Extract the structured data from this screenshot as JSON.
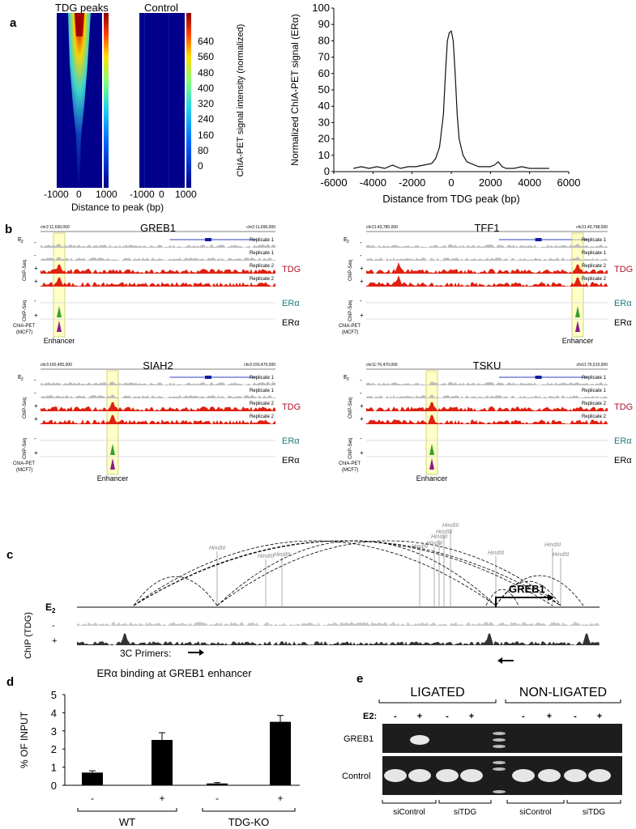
{
  "panel_a": {
    "letter": "a",
    "heatmap_left_title": "TDG peaks",
    "heatmap_right_title": "Control",
    "heatmap_xticks": [
      "-1000",
      "0",
      "1000"
    ],
    "heatmap_xlabel": "Distance to peak (bp)",
    "colorbar_ticks": [
      "640",
      "560",
      "480",
      "400",
      "320",
      "240",
      "160",
      "80",
      "0"
    ],
    "colorbar_label": "ChIA-PET signal intensity (normalized)",
    "colors": {
      "low": "#00008b",
      "mid": "#20c0e0",
      "high": "#8b0000"
    }
  },
  "chart_data": [
    {
      "type": "line",
      "ylabel": "Normalized ChIA-PET signal (ERα)",
      "xlabel": "Distance from TDG peak (bp)",
      "xlim": [
        -6000,
        6000
      ],
      "ylim": [
        0,
        100
      ],
      "xticks": [
        "-6000",
        "-4000",
        "-2000",
        "0",
        "2000",
        "4000",
        "6000"
      ],
      "yticks": [
        "0",
        "10",
        "20",
        "30",
        "40",
        "50",
        "60",
        "70",
        "80",
        "90",
        "100"
      ],
      "series": [
        {
          "x": [
            -5000,
            -4600,
            -4200,
            -3800,
            -3400,
            -3000,
            -2600,
            -2200,
            -1800,
            -1400,
            -1000,
            -800,
            -600,
            -400,
            -300,
            -200,
            -100,
            0,
            100,
            200,
            300,
            400,
            600,
            800,
            1000,
            1400,
            1800,
            2000,
            2200,
            2400,
            2600,
            2800,
            3200,
            3600,
            4000,
            4400,
            4800,
            5000
          ],
          "y": [
            2,
            3,
            2,
            3,
            2,
            4,
            2,
            3,
            3,
            4,
            5,
            8,
            15,
            35,
            60,
            80,
            85,
            86,
            80,
            60,
            35,
            20,
            10,
            6,
            5,
            3,
            3,
            3,
            4,
            6,
            3,
            2,
            2,
            3,
            2,
            2,
            2,
            2
          ]
        }
      ]
    },
    {
      "type": "bar",
      "title": "ERα binding at GREB1 enhancer",
      "ylabel": "% OF INPUT",
      "ylim": [
        0,
        5
      ],
      "yticks": [
        "0",
        "1",
        "2",
        "3",
        "4",
        "5"
      ],
      "categories": [
        "WT -",
        "WT +",
        "TDG-KO -",
        "TDG-KO +"
      ],
      "values": [
        0.7,
        2.5,
        0.1,
        3.5
      ],
      "errors": [
        0.1,
        0.4,
        0.05,
        0.35
      ]
    }
  ],
  "panel_b": {
    "letter": "b",
    "e2": "E",
    "e2_sub": "2",
    "chip_seq": "ChIP-Seq",
    "chia_pet": "ChIA-PET",
    "mcf7": "(MCF7)",
    "replicate1": "Replicate 1",
    "replicate2": "Replicate 2",
    "tdg": "TDG",
    "era": "ERα",
    "enhancer": "Enhancer",
    "minus": "-",
    "plus": "+",
    "greb1": {
      "gene": "GREB1",
      "left": "chr2:11,630,000",
      "right": "chr2:11,690,000"
    },
    "tff1": {
      "gene": "TFF1",
      "left": "chr21:43,785,000",
      "right": "chr21:43,798,000"
    },
    "siah2": {
      "gene": "SIAH2",
      "left": "chr3:150,455,000",
      "right": "chr3:150,470,000"
    },
    "tsku": {
      "gene": "TSKU",
      "left": "chr11:76,470,000",
      "right": "chr11:76,510,000"
    }
  },
  "panel_c": {
    "letter": "c",
    "hindiii": "HindIII",
    "gene": "GREB1",
    "e2": "E",
    "e2_sub": "2",
    "chip_label": "ChIP (TDG)",
    "minus": "-",
    "plus": "+",
    "primers": "3C Primers:"
  },
  "panel_d": {
    "letter": "d",
    "groups": [
      "WT",
      "TDG-KO"
    ],
    "treat": [
      "-",
      "+",
      "-",
      "+"
    ]
  },
  "panel_e": {
    "letter": "e",
    "ligated": "LIGATED",
    "non_ligated": "NON-LIGATED",
    "e2": "E2:",
    "treat": [
      "-",
      "+",
      "-",
      "+",
      "-",
      "+",
      "-",
      "+"
    ],
    "row1": "GREB1",
    "row2": "Control",
    "groups": [
      "siControl",
      "siTDG",
      "siControl",
      "siTDG"
    ]
  }
}
